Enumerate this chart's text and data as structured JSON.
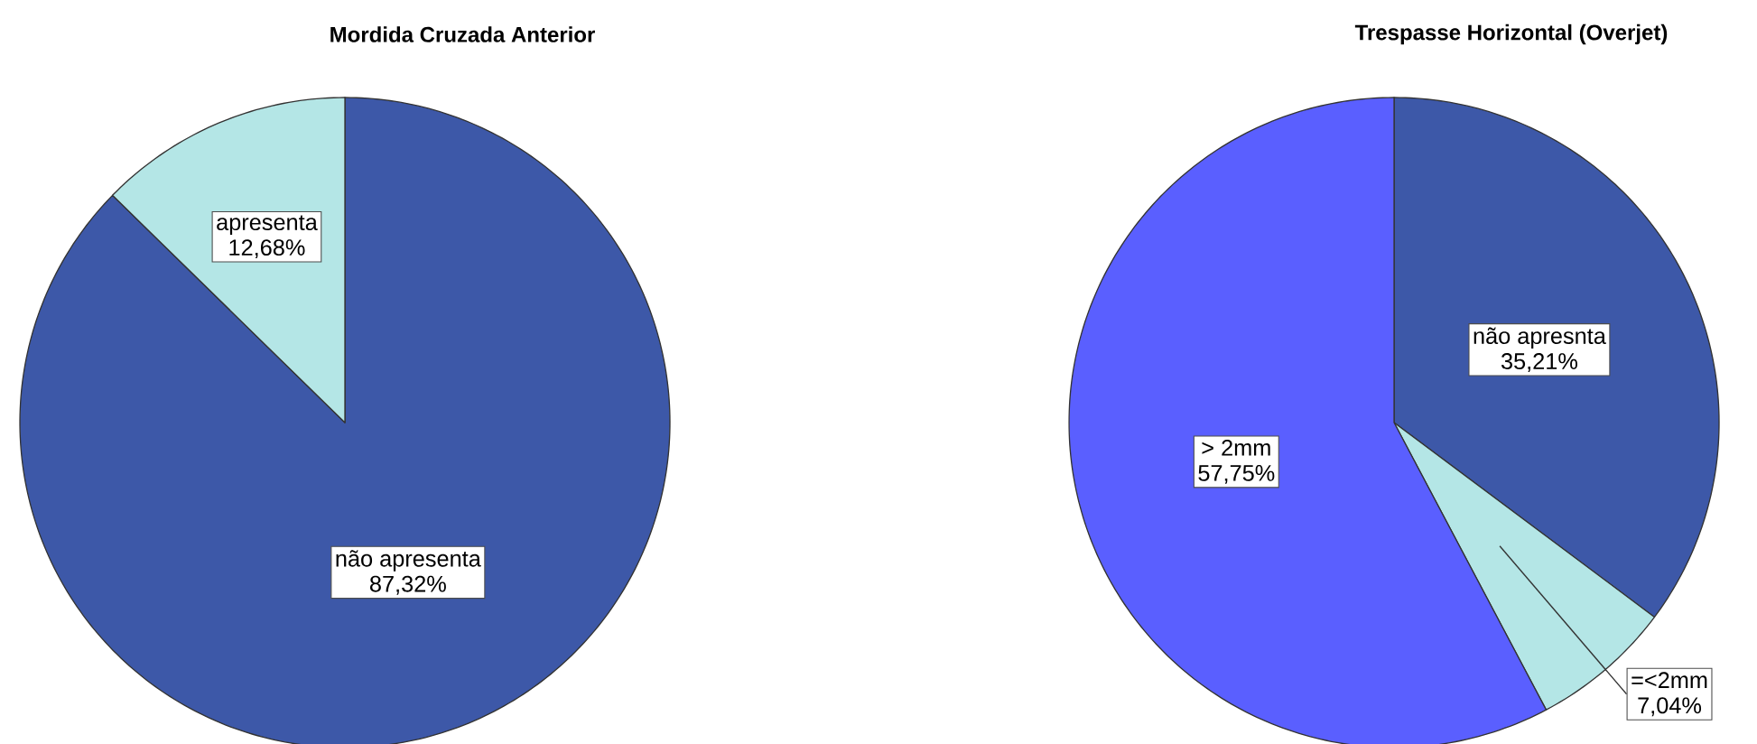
{
  "chart_data": [
    {
      "type": "pie",
      "title": "Mordida Cruzada Anterior",
      "categories": [
        "não apresenta",
        "apresenta"
      ],
      "values": [
        87.32,
        12.68
      ],
      "colors": [
        "#3d58a8",
        "#b4e6e6"
      ],
      "value_labels": [
        "87,32%",
        "12,68%"
      ]
    },
    {
      "type": "pie",
      "title": "Trespasse Horizontal (Overjet)",
      "categories": [
        "não apresnta",
        "=<2mm",
        "> 2mm"
      ],
      "values": [
        35.21,
        7.04,
        57.75
      ],
      "colors": [
        "#3d58a8",
        "#b4e6e6",
        "#5a5fff"
      ],
      "value_labels": [
        "35,21%",
        "7,04%",
        "57,75%"
      ]
    }
  ]
}
